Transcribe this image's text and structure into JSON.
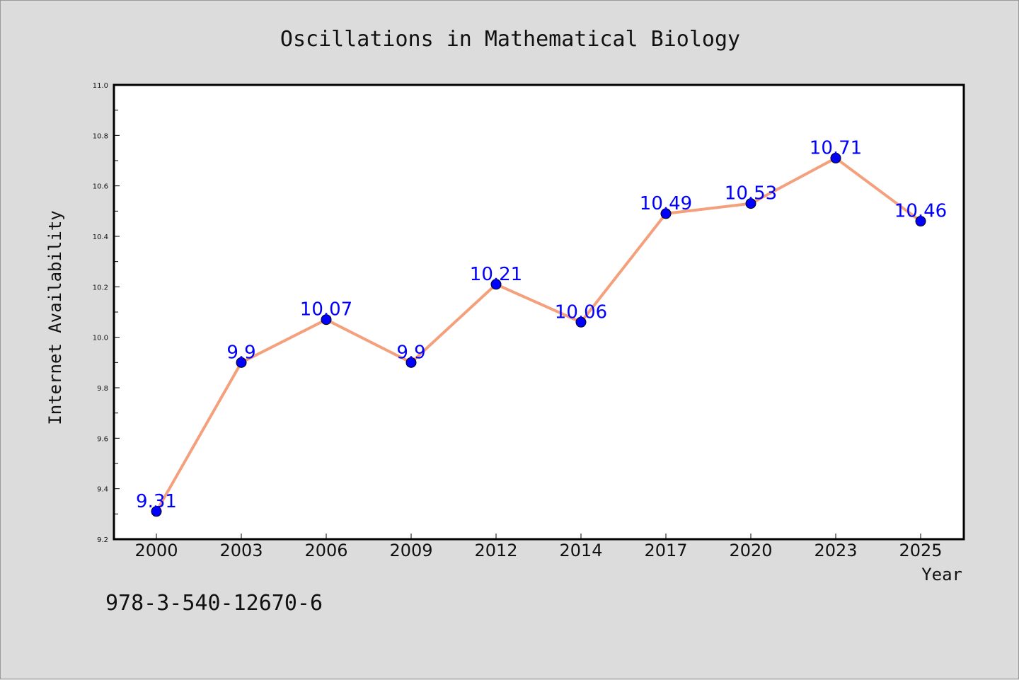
{
  "chart_data": {
    "type": "line",
    "title": "Oscillations in Mathematical Biology",
    "xlabel": "Year",
    "ylabel": "Internet Availability",
    "categories": [
      "2000",
      "2003",
      "2006",
      "2009",
      "2012",
      "2014",
      "2017",
      "2020",
      "2023",
      "2025"
    ],
    "series": [
      {
        "values": [
          9.31,
          9.9,
          10.07,
          9.9,
          10.21,
          10.06,
          10.49,
          10.53,
          10.71,
          10.46
        ],
        "data_labels": [
          "9.31",
          "9.9",
          "10.07",
          "9.9",
          "10.21",
          "10.06",
          "10.49",
          "10.53",
          "10.71",
          "10.46"
        ],
        "line_color": "#f4a07c",
        "marker_color": "#0000ff",
        "label_color": "#0000ff"
      }
    ],
    "ylim": [
      9.2,
      11.0
    ],
    "yticks": [
      "9.2",
      "9.4",
      "9.6",
      "9.8",
      "10.0",
      "10.2",
      "10.4",
      "10.6",
      "10.8",
      "11.0"
    ],
    "grid": false,
    "legend": "none"
  },
  "footer": {
    "code": "978-3-540-12670-6"
  },
  "colors": {
    "background": "#dcdcdc",
    "plot_area": "#ffffff"
  }
}
